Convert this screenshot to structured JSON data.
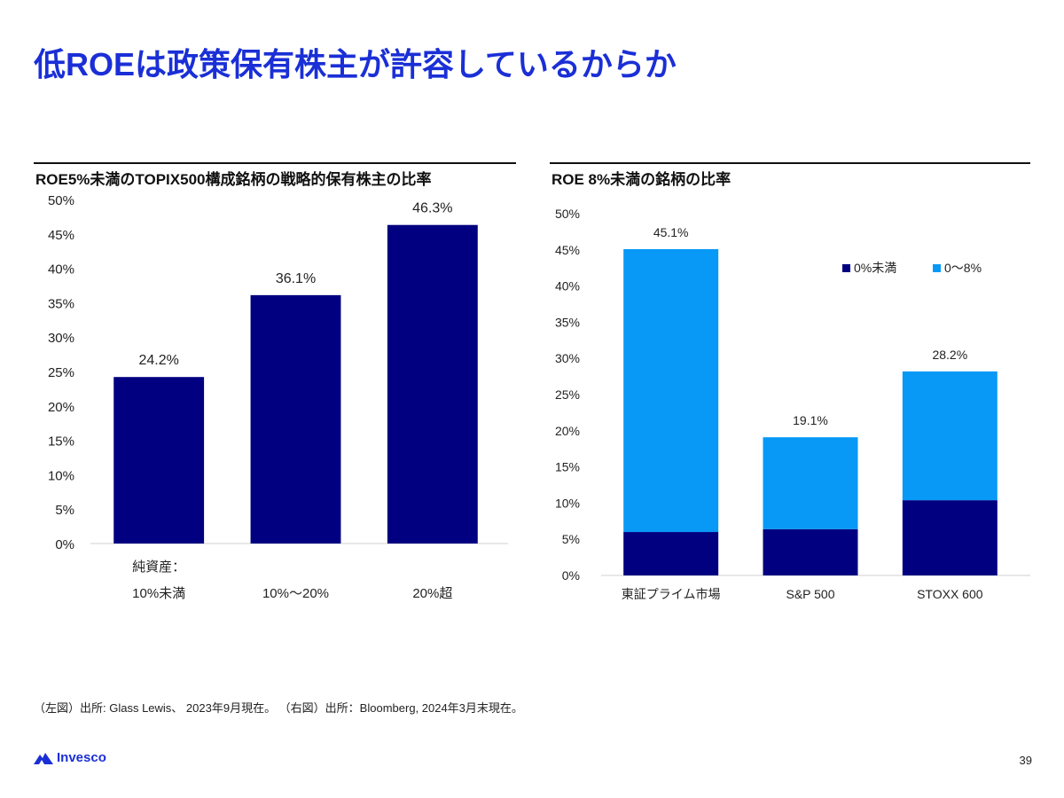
{
  "page": {
    "title": "低ROEは政策保有株主が許容しているからか",
    "footnote": "（左図）出所: Glass Lewis、 2023年9月現在。 （右図）出所：Bloomberg, 2024年3月末現在。",
    "logo_text": "Invesco",
    "page_number": "39"
  },
  "colors": {
    "title": "#1a2fd6",
    "navy": "#000080",
    "light_blue": "#0899f7",
    "axis": "#d0d0d0"
  },
  "chart_data": [
    {
      "type": "bar",
      "title": "ROE5%未満のTOPIX500構成銘柄の戦略的保有株主の比率",
      "category_prefix": "純資産：",
      "categories": [
        "10%未満",
        "10%～20%",
        "20%超"
      ],
      "values": [
        24.2,
        36.1,
        46.3
      ],
      "value_labels": [
        "24.2%",
        "36.1%",
        "46.3%"
      ],
      "ylim": [
        0,
        50
      ],
      "yticks": [
        "0%",
        "5%",
        "10%",
        "15%",
        "20%",
        "25%",
        "30%",
        "35%",
        "40%",
        "45%",
        "50%"
      ],
      "grid": false,
      "xlabel": "",
      "ylabel": ""
    },
    {
      "type": "bar",
      "stacked": true,
      "title": "ROE 8%未満の銘柄の比率",
      "categories": [
        "東証プライム市場",
        "S&P 500",
        "STOXX 600"
      ],
      "series": [
        {
          "name": "0%未満",
          "values": [
            6.0,
            6.4,
            10.4
          ]
        },
        {
          "name": "0～8%",
          "values": [
            39.1,
            12.7,
            17.8
          ]
        }
      ],
      "totals": [
        45.1,
        19.1,
        28.2
      ],
      "total_labels": [
        "45.1%",
        "19.1%",
        "28.2%"
      ],
      "ylim": [
        0,
        50
      ],
      "yticks": [
        "0%",
        "5%",
        "10%",
        "15%",
        "20%",
        "25%",
        "30%",
        "35%",
        "40%",
        "45%",
        "50%"
      ],
      "legend_position": "top-right",
      "grid": false,
      "xlabel": "",
      "ylabel": ""
    }
  ]
}
